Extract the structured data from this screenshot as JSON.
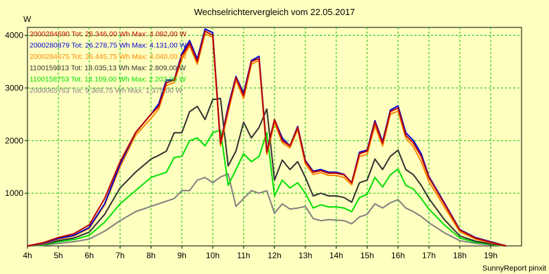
{
  "chart_data": {
    "type": "line",
    "title": "Wechselrichtervergleich vom 22.05.2017",
    "ylabel": "W",
    "xlabel": "",
    "ylim": [
      0,
      4150
    ],
    "xlim": [
      4,
      20
    ],
    "grid": true,
    "legend_placement": "top-left",
    "xticks": [
      {
        "value": 4,
        "label": "4h"
      },
      {
        "value": 5,
        "label": "5h"
      },
      {
        "value": 6,
        "label": "6h"
      },
      {
        "value": 7,
        "label": "7h"
      },
      {
        "value": 8,
        "label": "8h"
      },
      {
        "value": 9,
        "label": "9h"
      },
      {
        "value": 10,
        "label": "10h"
      },
      {
        "value": 11,
        "label": "11h"
      },
      {
        "value": 12,
        "label": "12h"
      },
      {
        "value": 13,
        "label": "13h"
      },
      {
        "value": 14,
        "label": "14h"
      },
      {
        "value": 15,
        "label": "15h"
      },
      {
        "value": 16,
        "label": "16h"
      },
      {
        "value": 17,
        "label": "17h"
      },
      {
        "value": 18,
        "label": "18h"
      },
      {
        "value": 19,
        "label": "19h"
      }
    ],
    "yticks": [
      {
        "value": 1000,
        "label": "1000"
      },
      {
        "value": 2000,
        "label": "2000"
      },
      {
        "value": 3000,
        "label": "3000"
      },
      {
        "value": 4000,
        "label": "4000"
      }
    ],
    "x": [
      4.0,
      4.5,
      5.0,
      5.5,
      6.0,
      6.5,
      7.0,
      7.5,
      8.0,
      8.25,
      8.5,
      8.75,
      9.0,
      9.25,
      9.5,
      9.75,
      10.0,
      10.25,
      10.5,
      10.75,
      11.0,
      11.25,
      11.5,
      11.75,
      12.0,
      12.25,
      12.5,
      12.75,
      13.0,
      13.25,
      13.5,
      13.75,
      14.0,
      14.25,
      14.5,
      14.75,
      15.0,
      15.25,
      15.5,
      15.75,
      16.0,
      16.25,
      16.5,
      16.75,
      17.0,
      17.5,
      18.0,
      18.5,
      19.0,
      19.5
    ],
    "series": [
      {
        "name": "2000284690 Tot: 26.346,00 Wh Max: 4.092,00 W",
        "color": "#c00000",
        "values": [
          0,
          60,
          160,
          230,
          400,
          900,
          1600,
          2150,
          2500,
          2650,
          3100,
          3150,
          3600,
          3850,
          3500,
          4080,
          4000,
          1950,
          2600,
          3200,
          2850,
          3500,
          3560,
          1780,
          2400,
          2000,
          1900,
          2250,
          1600,
          1400,
          1430,
          1380,
          1380,
          1350,
          1200,
          1750,
          1800,
          2350,
          1950,
          2550,
          2620,
          2100,
          1950,
          1700,
          1300,
          800,
          300,
          150,
          70,
          0
        ]
      },
      {
        "name": "2000280879 Tot: 26.278,75 Wh Max: 4.131,00 W",
        "color": "#0000d0",
        "values": [
          0,
          50,
          140,
          200,
          350,
          800,
          1550,
          2150,
          2500,
          2700,
          3150,
          3150,
          3650,
          3900,
          3550,
          4120,
          4050,
          1950,
          2650,
          3220,
          2900,
          3520,
          3600,
          1800,
          2400,
          2050,
          1900,
          2270,
          1620,
          1420,
          1450,
          1400,
          1400,
          1360,
          1200,
          1780,
          1820,
          2380,
          1980,
          2580,
          2660,
          2150,
          2000,
          1750,
          1320,
          820,
          310,
          160,
          80,
          0
        ]
      },
      {
        "name": "2000284675 Tot: 25.445,75 Wh Max: 4.040,00 W",
        "color": "#ff8800",
        "values": [
          0,
          40,
          130,
          190,
          330,
          780,
          1500,
          2100,
          2420,
          2600,
          3050,
          3100,
          3550,
          3800,
          3450,
          4030,
          3960,
          1900,
          2550,
          3150,
          2800,
          3450,
          3520,
          1740,
          2340,
          1960,
          1860,
          2210,
          1560,
          1360,
          1390,
          1340,
          1340,
          1300,
          1160,
          1700,
          1740,
          2280,
          1900,
          2500,
          2560,
          2050,
          1880,
          1600,
          1220,
          740,
          270,
          130,
          60,
          0
        ]
      },
      {
        "name": "1100159813 Tot: 18.035,13 Wh Max: 2.809,00 W",
        "color": "#303030",
        "values": [
          0,
          30,
          100,
          150,
          260,
          600,
          1100,
          1400,
          1650,
          1720,
          1800,
          2150,
          2150,
          2550,
          2650,
          2400,
          2780,
          2800,
          1520,
          1800,
          2350,
          2050,
          2250,
          2600,
          1250,
          1630,
          1450,
          1600,
          1300,
          950,
          1000,
          950,
          950,
          920,
          830,
          1200,
          1250,
          1650,
          1450,
          1700,
          1820,
          1450,
          1350,
          1150,
          900,
          500,
          190,
          90,
          40,
          0
        ]
      },
      {
        "name": "1100158753 Tot: 14.109,00 Wh Max: 2.203,00 W",
        "color": "#00e000",
        "values": [
          0,
          20,
          80,
          120,
          200,
          450,
          800,
          1050,
          1300,
          1350,
          1400,
          1680,
          1700,
          2000,
          2050,
          1900,
          2150,
          2200,
          1150,
          1450,
          1750,
          1600,
          1700,
          2150,
          950,
          1250,
          1100,
          1200,
          1000,
          720,
          780,
          740,
          740,
          720,
          650,
          920,
          980,
          1300,
          1120,
          1350,
          1460,
          1150,
          1080,
          900,
          700,
          400,
          150,
          70,
          30,
          0
        ]
      },
      {
        "name": "2000065763 Tot: 9.369,75 Wh Max: 1.375,00 W",
        "color": "#808080",
        "values": [
          0,
          10,
          50,
          80,
          130,
          280,
          480,
          650,
          750,
          800,
          850,
          900,
          1050,
          1050,
          1250,
          1300,
          1200,
          1310,
          1370,
          750,
          900,
          1050,
          1000,
          1050,
          620,
          800,
          700,
          720,
          750,
          520,
          480,
          500,
          490,
          480,
          420,
          550,
          600,
          800,
          720,
          820,
          880,
          720,
          650,
          560,
          440,
          250,
          100,
          50,
          20,
          0
        ]
      }
    ],
    "footer": "SunnyReport pinxit"
  }
}
